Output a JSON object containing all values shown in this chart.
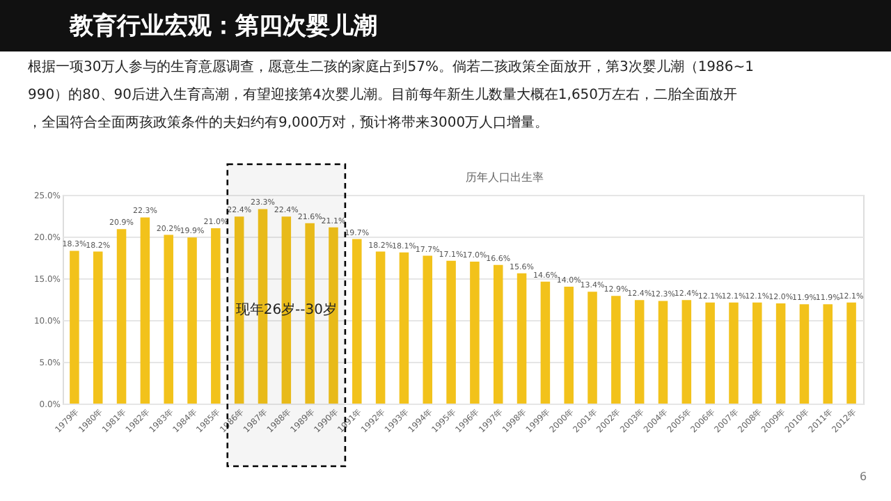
{
  "chart_data": {
    "type": "bar",
    "title": "教育行业宏观：第四次婴儿潮",
    "subtitle": "历年人口出生率",
    "annotations": [
      "根据一项30万人参与的生育意愿调查，愿意生二孩的家庭占到57%。倘若二孩政策全面放开，第3次婴儿潮（1986~1990）的80、90后进入生育高潮，有望迎接第4次婴儿潮。目前每年新生儿数量大概在1,650万左右，二胎全面放开，全国符合全面两孩政策条件的夫妇约有9,000万对，预计将带来3000万人口增量。",
      "6"
    ],
    "categories": [
      "1979年",
      "1980年",
      "1981年",
      "1982年",
      "1983年",
      "1984年",
      "1985年",
      "1986年",
      "1987年",
      "1988年",
      "1989年",
      "1990年",
      "1991年",
      "1992年",
      "1993年",
      "1994年",
      "1995年",
      "1996年",
      "1997年",
      "1998年",
      "1999年",
      "2000年",
      "2001年",
      "2002年",
      "2003年",
      "2004年",
      "2005年",
      "2006年",
      "2007年",
      "2008年",
      "2009年",
      "2010年",
      "2011年",
      "2012年"
    ],
    "values": [
      18.3,
      18.2,
      20.9,
      22.3,
      20.2,
      19.9,
      21.0,
      22.4,
      23.3,
      22.4,
      21.6,
      21.1,
      19.7,
      18.2,
      18.1,
      17.7,
      17.1,
      17.0,
      16.6,
      15.6,
      14.6,
      14.0,
      13.4,
      12.9,
      12.4,
      12.3,
      12.4,
      12.1,
      12.1,
      12.1,
      12.0,
      11.9,
      11.9,
      12.1
    ],
    "value_labels": [
      "18.3%",
      "18.2%",
      "20.9%",
      "22.3%",
      "20.2%",
      "19.9%",
      "21.0%",
      "22.4%",
      "23.3%",
      "22.4%",
      "21.6%",
      "21.1%",
      "19.7%",
      "18.2%",
      "18.1%",
      "17.7%",
      "17.1%",
      "17.0%",
      "16.6%",
      "15.6%",
      "14.6%",
      "14.0%",
      "13.4%",
      "12.9%",
      "12.4%",
      "12.3%",
      "12.4%",
      "12.1%",
      "12.1%",
      "12.1%",
      "12.0%",
      "11.9%",
      "11.9%",
      "12.1%"
    ],
    "color": "#f2c21b",
    "ylim": [
      0,
      25
    ],
    "yticks": [
      {
        "value": 0,
        "label": "0.0%"
      },
      {
        "value": 5,
        "label": "5.0%"
      },
      {
        "value": 10,
        "label": "10.0%"
      },
      {
        "value": 15,
        "label": "15.0%"
      },
      {
        "value": 20,
        "label": "20.0%"
      },
      {
        "value": 25,
        "label": "25.0%"
      }
    ],
    "bands": [
      {
        "axis": "x",
        "from": "1986年",
        "to": "1990年",
        "label": "现年26岁--30岁",
        "color": "#000000"
      }
    ],
    "grid": "y"
  }
}
